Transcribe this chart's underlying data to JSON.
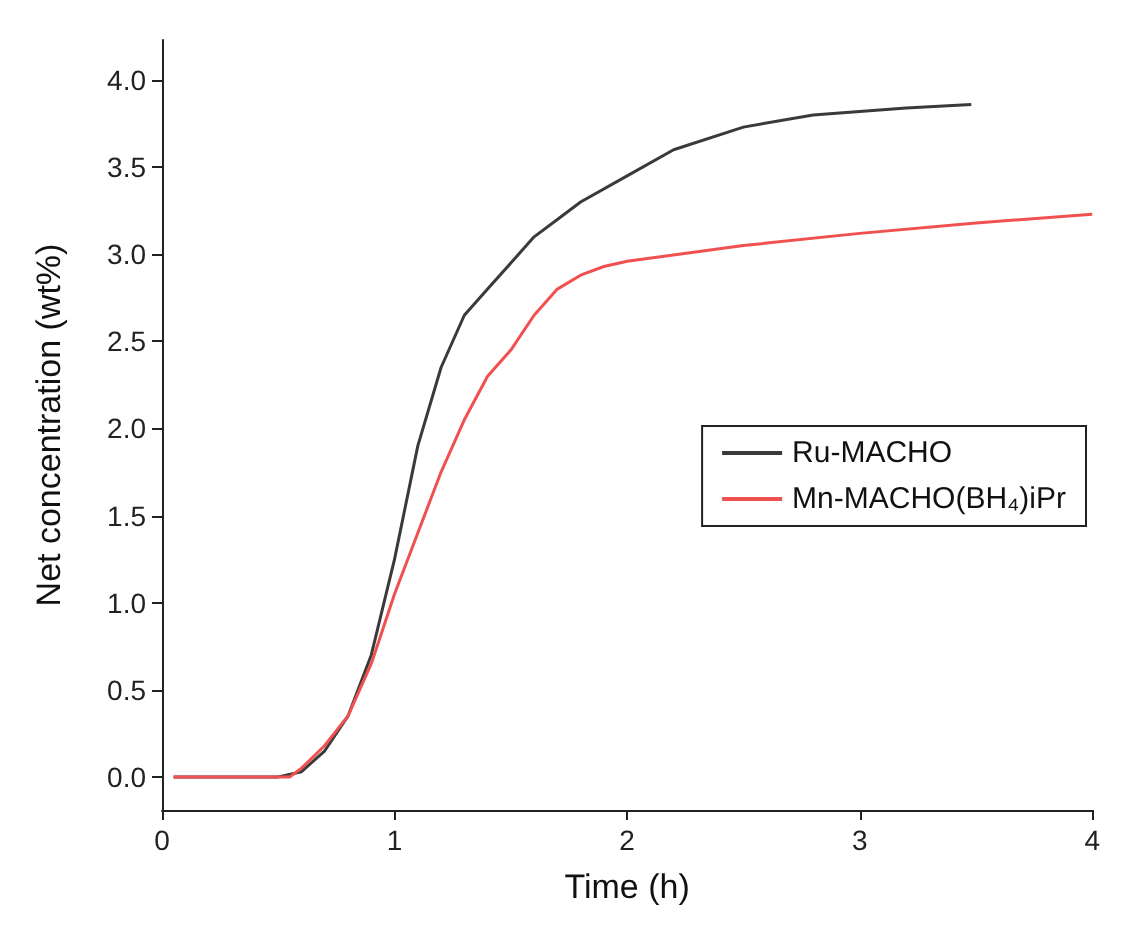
{
  "chart_data": {
    "type": "line",
    "xlabel": "Time (h)",
    "ylabel": "Net concentration (wt%)",
    "xlim": [
      0,
      4
    ],
    "xticks": [
      0,
      1,
      2,
      3,
      4
    ],
    "ylim": [
      -0.19,
      4.23
    ],
    "yticks": [
      {
        "value": 0,
        "label": "0.0"
      },
      {
        "value": 0.5,
        "label": "0.5"
      },
      {
        "value": 1,
        "label": "1.0"
      },
      {
        "value": 1.5,
        "label": "1.5"
      },
      {
        "value": 2,
        "label": "2.0"
      },
      {
        "value": 2.5,
        "label": "2.5"
      },
      {
        "value": 3,
        "label": "3.0"
      },
      {
        "value": 3.5,
        "label": "3.5"
      },
      {
        "value": 4,
        "label": "4.0"
      }
    ],
    "grid": false,
    "legend": "right",
    "marker": "none",
    "line_style": "solid",
    "series": [
      {
        "name": "Ru-MACHO",
        "color": "#3a3a3a",
        "x": [
          0.05,
          0.3,
          0.5,
          0.6,
          0.7,
          0.8,
          0.9,
          1.0,
          1.1,
          1.2,
          1.3,
          1.4,
          1.5,
          1.6,
          1.7,
          1.8,
          2.0,
          2.2,
          2.5,
          2.8,
          3.0,
          3.2,
          3.48
        ],
        "values": [
          0,
          0,
          0,
          0.03,
          0.15,
          0.35,
          0.7,
          1.25,
          1.9,
          2.35,
          2.65,
          2.8,
          2.95,
          3.1,
          3.2,
          3.3,
          3.45,
          3.6,
          3.73,
          3.8,
          3.82,
          3.84,
          3.86
        ]
      },
      {
        "name": "Mn-MACHO(BH₄)iPr",
        "color": "#f05050",
        "x": [
          0.05,
          0.3,
          0.55,
          0.6,
          0.7,
          0.8,
          0.9,
          1.0,
          1.1,
          1.2,
          1.3,
          1.4,
          1.5,
          1.6,
          1.7,
          1.8,
          1.9,
          2.0,
          2.5,
          3.0,
          3.5,
          4.0
        ],
        "values": [
          0,
          0,
          0,
          0.05,
          0.18,
          0.35,
          0.65,
          1.05,
          1.4,
          1.75,
          2.05,
          2.3,
          2.45,
          2.65,
          2.8,
          2.88,
          2.93,
          2.96,
          3.05,
          3.12,
          3.18,
          3.23
        ]
      }
    ]
  }
}
